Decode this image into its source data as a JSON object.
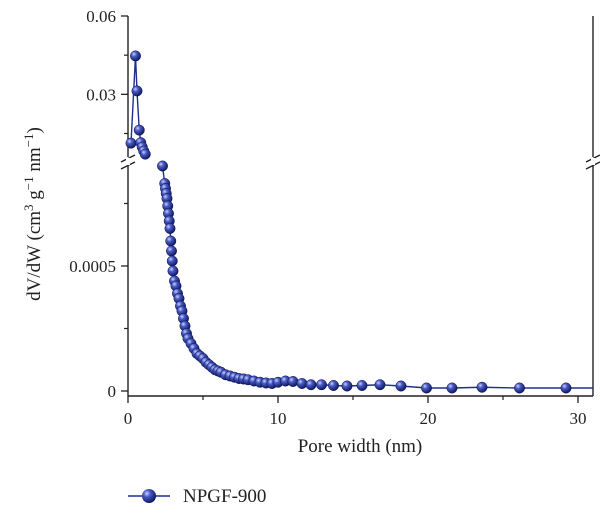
{
  "chart_data": {
    "type": "scatter",
    "xlabel": "Pore width (nm)",
    "ylabel": "dV/dW (cm³ g⁻¹ nm⁻¹)",
    "ylabel_parts": {
      "prefix": "dV/dW (cm",
      "sup1": "3",
      "mid": " g",
      "sup2": "−1",
      "mid2": " nm",
      "sup3": "−1",
      "suffix": ")"
    },
    "x_ticks": [
      "0",
      "10",
      "20",
      "30"
    ],
    "y_ticks_upper": [
      "0.06",
      "0.03"
    ],
    "y_ticks_lower": [
      "0.0005",
      "0"
    ],
    "xlim": [
      0,
      31
    ],
    "ylim_upper": [
      0.006,
      0.06
    ],
    "ylim_lower": [
      -2e-05,
      0.0009
    ],
    "broken_y_axis": true,
    "color": "#1f2f8f",
    "series": [
      {
        "name": "NPGF-900",
        "upper_points": [
          [
            0.2,
            0.0113
          ],
          [
            0.5,
            0.0447
          ],
          [
            0.6,
            0.0313
          ],
          [
            0.75,
            0.0163
          ],
          [
            0.85,
            0.0115
          ],
          [
            0.95,
            0.0098
          ],
          [
            1.05,
            0.0083
          ],
          [
            1.15,
            0.0071
          ]
        ],
        "lower_points": [
          [
            2.3,
            0.0009
          ],
          [
            2.45,
            0.00083
          ],
          [
            2.5,
            0.00081
          ],
          [
            2.55,
            0.00079
          ],
          [
            2.6,
            0.00077
          ],
          [
            2.65,
            0.00074
          ],
          [
            2.7,
            0.00071
          ],
          [
            2.75,
            0.00068
          ],
          [
            2.8,
            0.00065
          ],
          [
            2.85,
            0.0006
          ],
          [
            2.9,
            0.00056
          ],
          [
            2.95,
            0.00052
          ],
          [
            3.0,
            0.00048
          ],
          [
            3.1,
            0.00044
          ],
          [
            3.2,
            0.00042
          ],
          [
            3.3,
            0.00039
          ],
          [
            3.4,
            0.00037
          ],
          [
            3.5,
            0.00034
          ],
          [
            3.6,
            0.00032
          ],
          [
            3.7,
            0.00029
          ],
          [
            3.8,
            0.00026
          ],
          [
            3.9,
            0.00023
          ],
          [
            4.0,
            0.00021
          ],
          [
            4.2,
            0.00019
          ],
          [
            4.4,
            0.00017
          ],
          [
            4.6,
            0.00015
          ],
          [
            4.8,
            0.00014
          ],
          [
            5.0,
            0.00013
          ],
          [
            5.2,
            0.000115
          ],
          [
            5.4,
            0.000105
          ],
          [
            5.6,
            9.5e-05
          ],
          [
            5.8,
            8.5e-05
          ],
          [
            6.0,
            8e-05
          ],
          [
            6.2,
            7.5e-05
          ],
          [
            6.5,
            6.5e-05
          ],
          [
            6.8,
            6e-05
          ],
          [
            7.1,
            5.5e-05
          ],
          [
            7.4,
            5e-05
          ],
          [
            7.7,
            4.8e-05
          ],
          [
            8.0,
            4.5e-05
          ],
          [
            8.4,
            4e-05
          ],
          [
            8.8,
            3.5e-05
          ],
          [
            9.2,
            3.2e-05
          ],
          [
            9.6,
            3e-05
          ],
          [
            10.0,
            3.5e-05
          ],
          [
            10.5,
            4e-05
          ],
          [
            11.0,
            3.8e-05
          ],
          [
            11.6,
            3e-05
          ],
          [
            12.2,
            2.5e-05
          ],
          [
            12.9,
            2.5e-05
          ],
          [
            13.7,
            2.2e-05
          ],
          [
            14.6,
            2e-05
          ],
          [
            15.6,
            2.2e-05
          ],
          [
            16.8,
            2.5e-05
          ],
          [
            18.2,
            2e-05
          ],
          [
            19.9,
            1.2e-05
          ],
          [
            21.6,
            1.2e-05
          ],
          [
            23.6,
            1.5e-05
          ],
          [
            26.1,
            1.2e-05
          ],
          [
            29.2,
            1.2e-05
          ],
          [
            31.0,
            1.2e-05
          ]
        ]
      }
    ]
  }
}
